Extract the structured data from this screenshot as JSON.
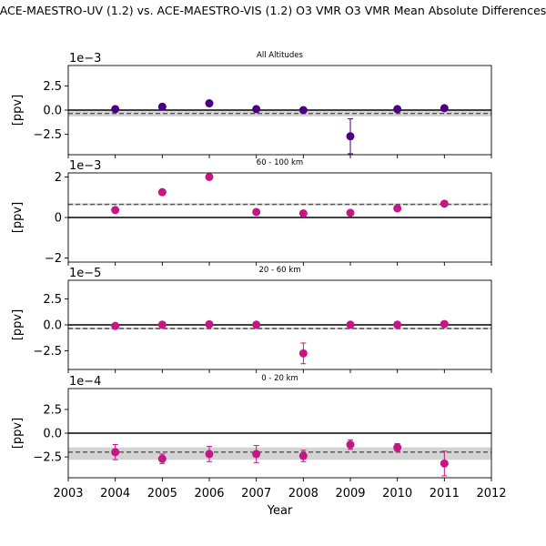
{
  "figure_title": "ACE-MAESTRO-UV (1.2) vs. ACE-MAESTRO-VIS (1.2) O3 VMR  O3 VMR Mean Absolute Differences",
  "x_axis_label": "Year",
  "chart_data": [
    {
      "type": "scatter",
      "title": "All Altitudes",
      "ylabel": "[ppv]",
      "scale_label": "1e−3",
      "marker_color": "#4b0082",
      "x": [
        2004,
        2005,
        2006,
        2007,
        2008,
        2009,
        2010,
        2011
      ],
      "y": [
        0.0001,
        0.00035,
        0.0007,
        0.0001,
        0.0,
        -0.0027,
        0.0001,
        0.0002
      ],
      "yerr": [
        0.00015,
        0.00015,
        0.00015,
        0.00015,
        0.00015,
        0.0018,
        0.00015,
        0.00015
      ],
      "mean": -0.00035,
      "band": [
        -0.00065,
        -0.0001
      ],
      "xlim": [
        2003,
        2012
      ],
      "ylim": [
        -0.0046,
        0.0046
      ],
      "yticks": [
        -0.0025,
        0.0,
        0.0025
      ],
      "yticklabels": [
        "−2.5",
        "0.0",
        "2.5"
      ],
      "xticks": [
        2003,
        2004,
        2005,
        2006,
        2007,
        2008,
        2009,
        2010,
        2011,
        2012
      ],
      "xticklabels": [],
      "grid": false
    },
    {
      "type": "scatter",
      "title": "60 - 100 km",
      "ylabel": "[ppv]",
      "scale_label": "1e−3",
      "marker_color": "#c71585",
      "x": [
        2004,
        2005,
        2006,
        2007,
        2008,
        2009,
        2010,
        2011
      ],
      "y": [
        0.00037,
        0.00125,
        0.002,
        0.00027,
        0.0002,
        0.00023,
        0.00045,
        0.00068
      ],
      "yerr": [
        3e-05,
        3e-05,
        3e-05,
        3e-05,
        3e-05,
        3e-05,
        3e-05,
        3e-05
      ],
      "mean": 0.00065,
      "band": [
        0.0006,
        0.0007
      ],
      "xlim": [
        2003,
        2012
      ],
      "ylim": [
        -0.0022,
        0.0022
      ],
      "yticks": [
        -0.002,
        0.0,
        0.002
      ],
      "yticklabels": [
        "−2",
        "0",
        "2"
      ],
      "xticks": [
        2003,
        2004,
        2005,
        2006,
        2007,
        2008,
        2009,
        2010,
        2011,
        2012
      ],
      "xticklabels": [],
      "grid": false
    },
    {
      "type": "scatter",
      "title": "20 - 60 km",
      "ylabel": "[ppv]",
      "scale_label": "1e−5",
      "marker_color": "#c71585",
      "x": [
        2004,
        2005,
        2006,
        2007,
        2008,
        2009,
        2010,
        2011
      ],
      "y": [
        -1e-06,
        2e-07,
        6e-07,
        2e-07,
        -2.75e-05,
        2e-07,
        2e-07,
        8e-07
      ],
      "yerr": [
        1e-06,
        1e-06,
        1e-06,
        1e-06,
        1e-05,
        1e-06,
        1e-06,
        1e-06
      ],
      "mean": -3.5e-06,
      "band": [
        -4.5e-06,
        -2.5e-06
      ],
      "xlim": [
        2003,
        2012
      ],
      "ylim": [
        -4.3e-05,
        4.3e-05
      ],
      "yticks": [
        -2.5e-05,
        0.0,
        2.5e-05
      ],
      "yticklabels": [
        "−2.5",
        "0.0",
        "2.5"
      ],
      "xticks": [
        2003,
        2004,
        2005,
        2006,
        2007,
        2008,
        2009,
        2010,
        2011,
        2012
      ],
      "xticklabels": [],
      "grid": false
    },
    {
      "type": "scatter",
      "title": "0 - 20 km",
      "ylabel": "[ppv]",
      "scale_label": "1e−4",
      "marker_color": "#c71585",
      "x": [
        2004,
        2005,
        2006,
        2007,
        2008,
        2009,
        2010,
        2011
      ],
      "y": [
        -0.0002,
        -0.00027,
        -0.00022,
        -0.00022,
        -0.00024,
        -0.00012,
        -0.00015,
        -0.00032
      ],
      "yerr": [
        8e-05,
        5e-05,
        8e-05,
        9e-05,
        6e-05,
        5e-05,
        4e-05,
        0.00013
      ],
      "mean": -0.0002,
      "band": [
        -0.00028,
        -0.00015
      ],
      "xlim": [
        2003,
        2012
      ],
      "ylim": [
        -0.00047,
        0.00047
      ],
      "yticks": [
        -0.00025,
        0.0,
        0.00025
      ],
      "yticklabels": [
        "−2.5",
        "0.0",
        "2.5"
      ],
      "xticks": [
        2003,
        2004,
        2005,
        2006,
        2007,
        2008,
        2009,
        2010,
        2011,
        2012
      ],
      "xticklabels": [
        "2003",
        "2004",
        "2005",
        "2006",
        "2007",
        "2008",
        "2009",
        "2010",
        "2011",
        "2012"
      ],
      "grid": false
    }
  ]
}
